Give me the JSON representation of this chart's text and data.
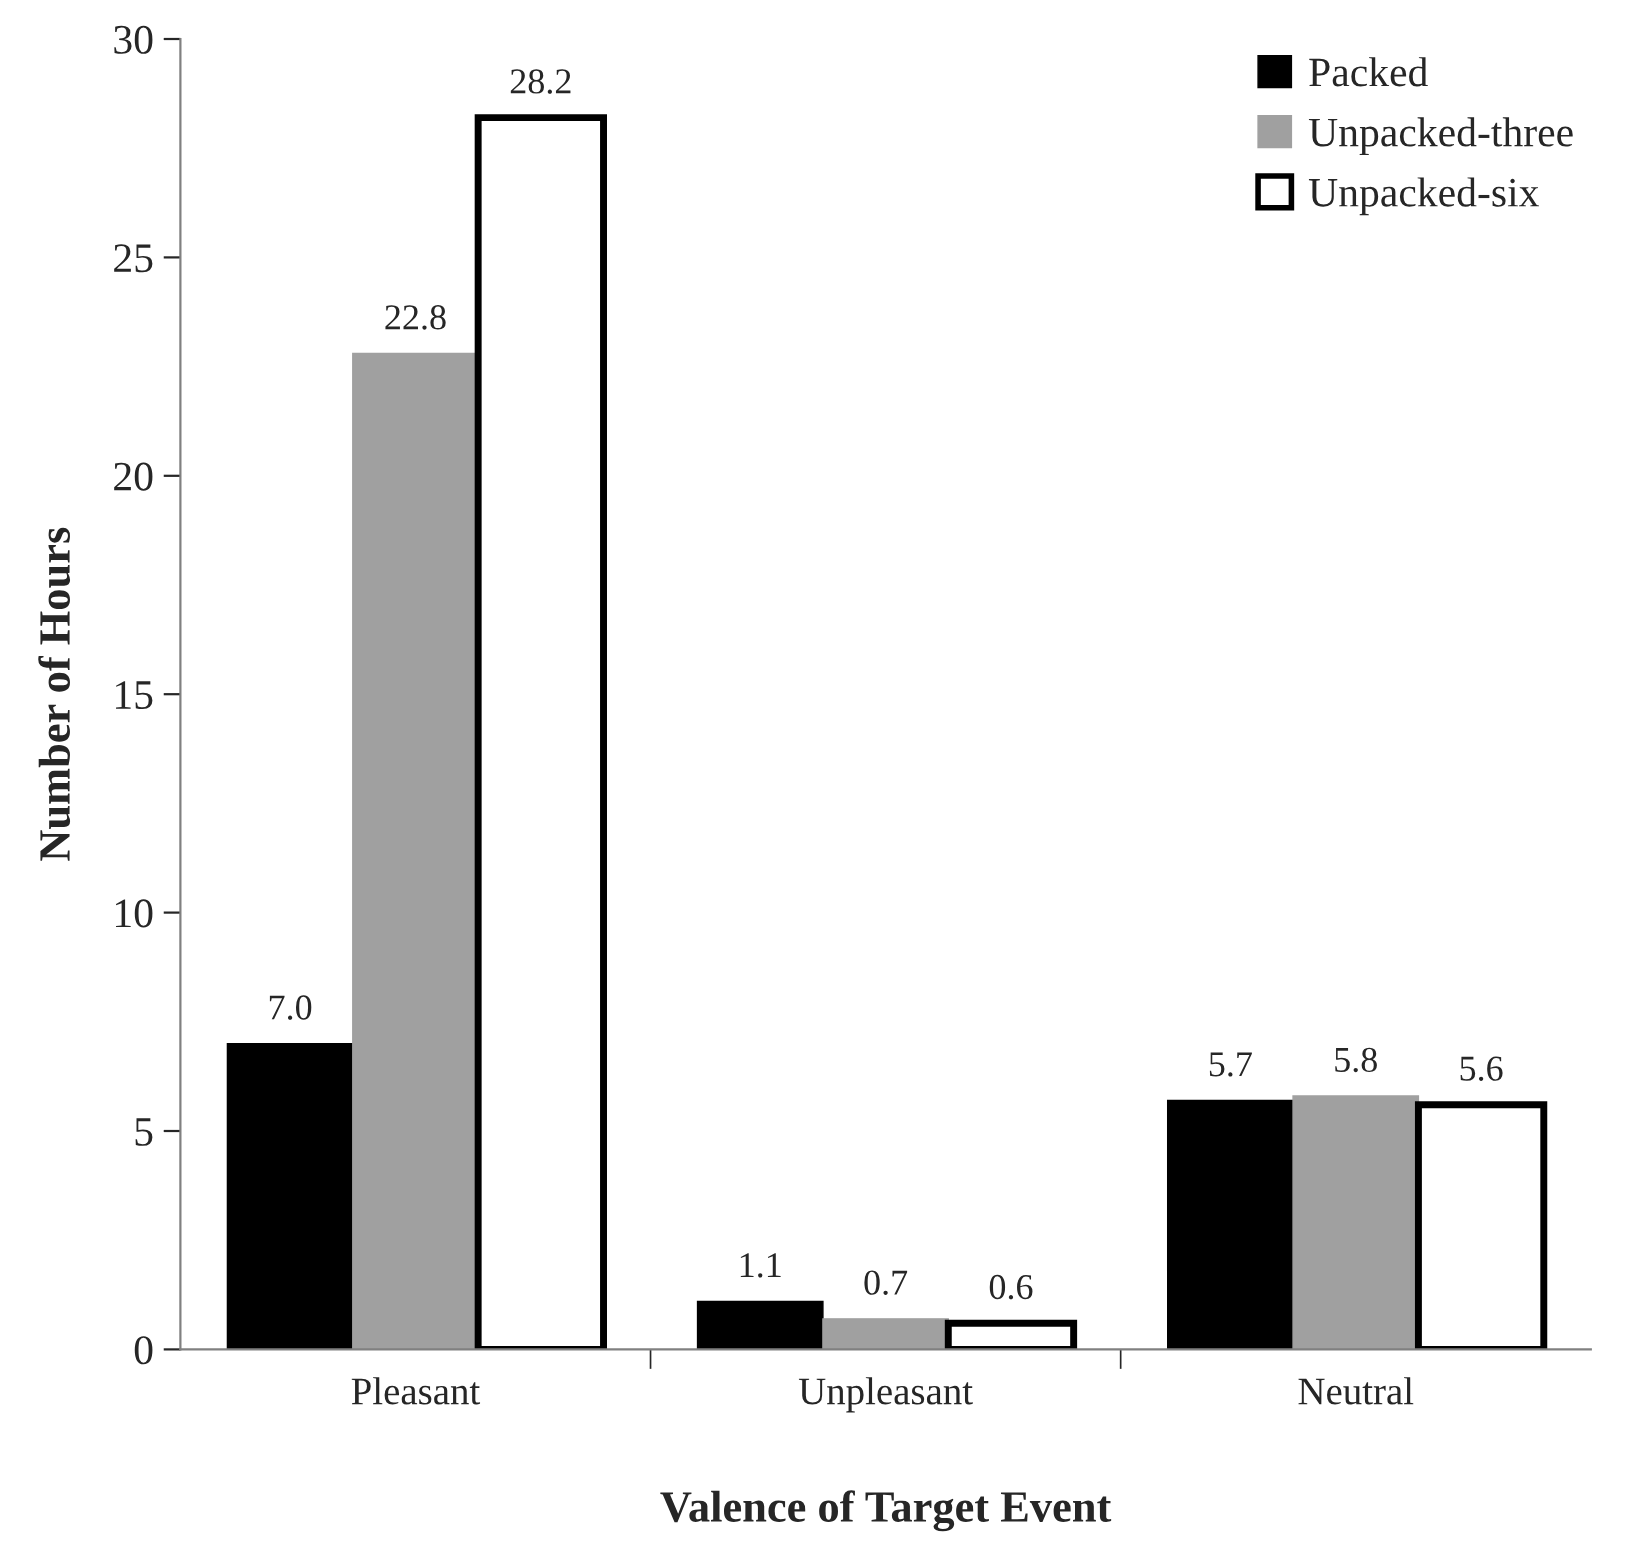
{
  "chart_data": {
    "type": "bar",
    "xlabel": "Valence of Target Event",
    "ylabel": "Number of Hours",
    "categories": [
      "Pleasant",
      "Unpleasant",
      "Neutral"
    ],
    "series": [
      {
        "name": "Packed",
        "color": "#000000",
        "values": [
          7.0,
          1.1,
          5.7
        ],
        "value_labels": [
          "7.0",
          "1.1",
          "5.7"
        ]
      },
      {
        "name": "Unpacked-three",
        "color": "#a0a0a0",
        "values": [
          22.8,
          0.7,
          5.8
        ],
        "value_labels": [
          "22.8",
          "0.7",
          "5.8"
        ]
      },
      {
        "name": "Unpacked-six",
        "color": "#ffffff",
        "values": [
          28.2,
          0.6,
          5.6
        ],
        "value_labels": [
          "28.2",
          "0.6",
          "5.6"
        ]
      }
    ],
    "ylim": [
      0,
      30
    ],
    "yticks": [
      0,
      5,
      10,
      15,
      20,
      25,
      30
    ],
    "grid": false,
    "legend": "top right"
  }
}
